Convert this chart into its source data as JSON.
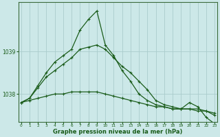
{
  "xlabel": "Graphe pression niveau de la mer (hPa)",
  "bg_color": "#cce8e8",
  "grid_color": "#aacccc",
  "line_color": "#1a5c1a",
  "hours": [
    0,
    1,
    2,
    3,
    4,
    5,
    6,
    7,
    8,
    9,
    10,
    11,
    12,
    13,
    14,
    15,
    16,
    17,
    18,
    19,
    20,
    21,
    22,
    23
  ],
  "series_flat": [
    1037.8,
    1037.85,
    1037.9,
    1037.95,
    1038.0,
    1038.0,
    1038.05,
    1038.05,
    1038.05,
    1038.05,
    1038.0,
    1037.95,
    1037.9,
    1037.85,
    1037.8,
    1037.75,
    1037.7,
    1037.7,
    1037.65,
    1037.65,
    1037.65,
    1037.6,
    1037.6,
    1037.55
  ],
  "series_mid": [
    1037.8,
    1037.9,
    1038.15,
    1038.4,
    1038.55,
    1038.7,
    1038.85,
    1039.05,
    1039.1,
    1039.15,
    1039.05,
    1038.85,
    1038.65,
    1038.5,
    1038.3,
    1038.1,
    1037.85,
    1037.75,
    1037.7,
    1037.65,
    1037.65,
    1037.65,
    1037.6,
    1037.5
  ],
  "series_peak": [
    1037.8,
    1037.9,
    1038.2,
    1038.5,
    1038.75,
    1038.9,
    1039.05,
    1039.5,
    1039.75,
    1039.95,
    1039.15,
    1038.9,
    1038.55,
    1038.3,
    1038.0,
    1037.85,
    1037.75,
    1037.7,
    1037.65,
    1037.65,
    1037.8,
    1037.7,
    1037.45,
    1037.3
  ],
  "ylim": [
    1037.35,
    1040.15
  ],
  "yticks": [
    1038,
    1039
  ],
  "xticks": [
    0,
    1,
    2,
    3,
    4,
    5,
    6,
    7,
    8,
    9,
    10,
    11,
    12,
    13,
    14,
    15,
    16,
    17,
    18,
    19,
    20,
    21,
    22,
    23
  ]
}
